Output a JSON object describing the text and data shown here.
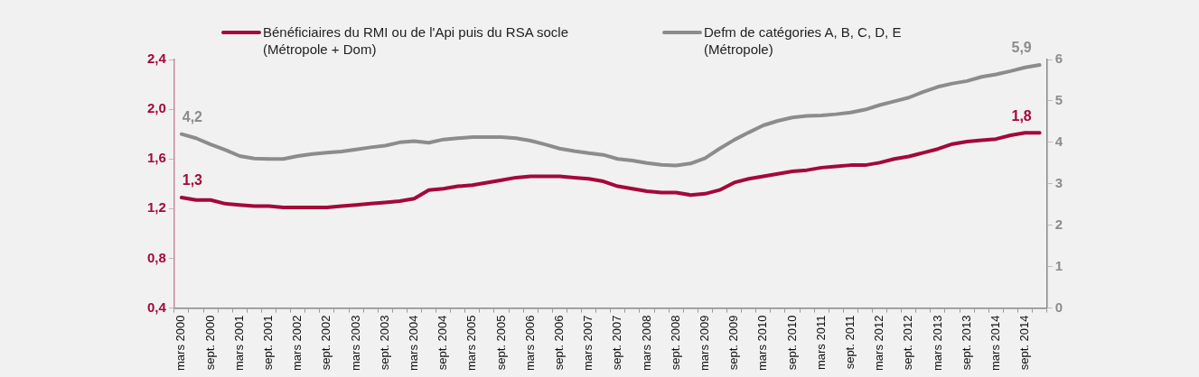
{
  "chart_data": {
    "type": "line",
    "categories": [
      "mars 2000",
      null,
      "sept. 2000",
      null,
      "mars 2001",
      null,
      "sept. 2001",
      null,
      "mars 2002",
      null,
      "sept. 2002",
      null,
      "mars 2003",
      null,
      "sept. 2003",
      null,
      "mars 2004",
      null,
      "sept. 2004",
      null,
      "mars 2005",
      null,
      "sept. 2005",
      null,
      "mars 2006",
      null,
      "sept. 2006",
      null,
      "mars 2007",
      null,
      "sept. 2007",
      null,
      "mars 2008",
      null,
      "sept. 2008",
      null,
      "mars 2009",
      null,
      "sept. 2009",
      null,
      "mars 2010",
      null,
      "sept. 2010",
      null,
      "mars 2011",
      null,
      "sept. 2011",
      null,
      "mars 2012",
      null,
      "sept. 2012",
      null,
      "mars 2013",
      null,
      "sept. 2013",
      null,
      "mars 2014",
      null,
      "sept. 2014",
      null
    ],
    "series": [
      {
        "name": "Bénéficiaires du RMI ou de l'Api puis du RSA socle (Métropole + Dom)",
        "color": "#a3093a",
        "values": [
          1.29,
          1.27,
          1.27,
          1.24,
          1.23,
          1.22,
          1.22,
          1.21,
          1.21,
          1.21,
          1.21,
          1.22,
          1.23,
          1.24,
          1.25,
          1.26,
          1.28,
          1.35,
          1.36,
          1.38,
          1.39,
          1.41,
          1.43,
          1.45,
          1.46,
          1.46,
          1.46,
          1.45,
          1.44,
          1.42,
          1.38,
          1.36,
          1.34,
          1.33,
          1.33,
          1.31,
          1.32,
          1.35,
          1.41,
          1.44,
          1.46,
          1.48,
          1.5,
          1.51,
          1.53,
          1.54,
          1.55,
          1.55,
          1.57,
          1.6,
          1.62,
          1.65,
          1.68,
          1.72,
          1.74,
          1.75,
          1.76,
          1.79,
          1.81,
          1.81
        ],
        "value_labels": [
          "1,3",
          null,
          null,
          null,
          null,
          null,
          null,
          null,
          null,
          null,
          null,
          null,
          null,
          null,
          null,
          null,
          null,
          null,
          null,
          null,
          null,
          null,
          null,
          null,
          null,
          null,
          null,
          null,
          null,
          null,
          null,
          null,
          null,
          null,
          null,
          null,
          null,
          null,
          null,
          null,
          null,
          null,
          null,
          null,
          null,
          null,
          null,
          null,
          null,
          null,
          null,
          null,
          null,
          null,
          null,
          null,
          null,
          null,
          null,
          "1,8"
        ]
      },
      {
        "name": "Defm de catégories A, B, C, D, E (Métropole)",
        "color": "#8c8c8c",
        "axis": "y2",
        "values": [
          4.2,
          4.1,
          3.95,
          3.82,
          3.67,
          3.61,
          3.6,
          3.6,
          3.67,
          3.72,
          3.75,
          3.78,
          3.83,
          3.88,
          3.92,
          4.0,
          4.03,
          3.99,
          4.07,
          4.1,
          4.13,
          4.13,
          4.13,
          4.1,
          4.04,
          3.95,
          3.85,
          3.79,
          3.74,
          3.7,
          3.6,
          3.56,
          3.5,
          3.46,
          3.44,
          3.49,
          3.62,
          3.85,
          4.06,
          4.24,
          4.41,
          4.52,
          4.6,
          4.64,
          4.65,
          4.68,
          4.72,
          4.79,
          4.9,
          4.99,
          5.08,
          5.22,
          5.34,
          5.42,
          5.48,
          5.58,
          5.64,
          5.72,
          5.81,
          5.87
        ],
        "value_labels": [
          "4,2",
          null,
          null,
          null,
          null,
          null,
          null,
          null,
          null,
          null,
          null,
          null,
          null,
          null,
          null,
          null,
          null,
          null,
          null,
          null,
          null,
          null,
          null,
          null,
          null,
          null,
          null,
          null,
          null,
          null,
          null,
          null,
          null,
          null,
          null,
          null,
          null,
          null,
          null,
          null,
          null,
          null,
          null,
          null,
          null,
          null,
          null,
          null,
          null,
          null,
          null,
          null,
          null,
          null,
          null,
          null,
          null,
          null,
          null,
          "5,9"
        ]
      }
    ],
    "ylim": [
      0.4,
      2.4
    ],
    "yticks": [
      {
        "value": 0.4,
        "label": "0,4"
      },
      {
        "value": 0.8,
        "label": "0,8"
      },
      {
        "value": 1.2,
        "label": "1,2"
      },
      {
        "value": 1.6,
        "label": "1,6"
      },
      {
        "value": 2.0,
        "label": "2,0"
      },
      {
        "value": 2.4,
        "label": "2,4"
      }
    ],
    "y2lim": [
      0,
      6
    ],
    "y2ticks": [
      0,
      1,
      2,
      3,
      4,
      5,
      6
    ],
    "legend": "top",
    "marker": "none",
    "line_style": "solid"
  }
}
